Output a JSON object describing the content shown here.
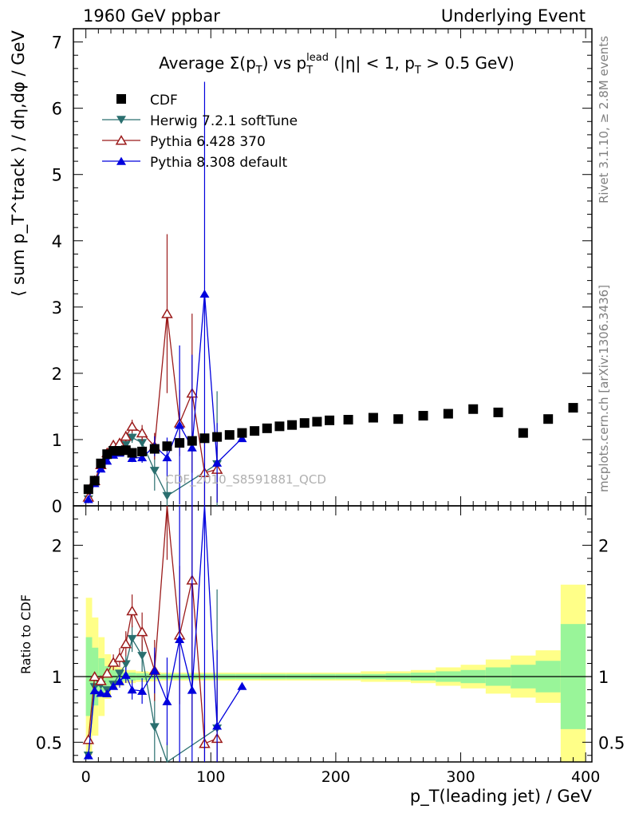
{
  "header": {
    "left": "1960 GeV ppbar",
    "right": "Underlying Event",
    "side_rivet": "Rivet 3.1.10, ≥ 2.8M events",
    "side_mcplots": "mcplots.cern.ch [arXiv:1306.3436]"
  },
  "chart_data": {
    "type": "scatter",
    "title_parts": [
      "Average Σ(p",
      "T",
      ") vs p",
      "T",
      "lead",
      " (|η| < 1, p",
      "T",
      " > 0.5 GeV)"
    ],
    "ylabel_main": "⟨ sum p_T^track ⟩ / dη,dφ / GeV",
    "ylabel_ratio": "Ratio to CDF",
    "xlabel": "p_T(leading jet) / GeV",
    "watermark": "CDF_2010_S8591881_QCD",
    "xlim": [
      -10,
      405
    ],
    "ylim_main": [
      0,
      7.2
    ],
    "ylim_ratio": [
      0.35,
      2.3
    ],
    "x_ticks": [
      0,
      100,
      200,
      300,
      400
    ],
    "y_ticks_main": [
      0,
      1,
      2,
      3,
      4,
      5,
      6,
      7
    ],
    "y_ticks_ratio": [
      0.5,
      1,
      2
    ],
    "legend": [
      {
        "label": "CDF",
        "marker": "square",
        "color": "#000000"
      },
      {
        "label": "Herwig 7.2.1 softTune",
        "marker": "triangle-down",
        "color": "#2a6f6f"
      },
      {
        "label": "Pythia 6.428 370",
        "marker": "triangle-open",
        "color": "#9b1b1b"
      },
      {
        "label": "Pythia 8.308 default",
        "marker": "triangle",
        "color": "#0000dd"
      }
    ],
    "data": {
      "x": [
        2,
        7,
        12,
        17,
        22,
        27,
        32,
        37,
        45,
        55,
        65,
        75,
        85,
        95,
        105,
        115,
        125,
        135,
        145,
        155,
        165,
        175,
        185,
        195,
        210,
        230,
        250,
        270,
        290,
        310,
        330,
        350,
        370,
        390
      ],
      "y": [
        0.25,
        0.38,
        0.64,
        0.78,
        0.83,
        0.83,
        0.84,
        0.8,
        0.82,
        0.86,
        0.9,
        0.95,
        0.98,
        1.02,
        1.04,
        1.07,
        1.1,
        1.13,
        1.17,
        1.2,
        1.22,
        1.25,
        1.27,
        1.29,
        1.3,
        1.33,
        1.31,
        1.36,
        1.39,
        1.46,
        1.41,
        1.1,
        1.31,
        1.48
      ]
    },
    "band": {
      "edges": [
        0,
        5,
        10,
        15,
        20,
        25,
        30,
        40,
        50,
        60,
        70,
        80,
        90,
        100,
        120,
        140,
        160,
        180,
        200,
        220,
        240,
        260,
        280,
        300,
        320,
        340,
        360,
        380,
        400
      ],
      "stat": [
        0.3,
        0.22,
        0.14,
        0.08,
        0.05,
        0.04,
        0.03,
        0.025,
        0.02,
        0.02,
        0.02,
        0.02,
        0.02,
        0.02,
        0.02,
        0.02,
        0.02,
        0.02,
        0.02,
        0.02,
        0.025,
        0.03,
        0.04,
        0.05,
        0.07,
        0.09,
        0.12,
        0.4
      ],
      "total": [
        0.6,
        0.45,
        0.3,
        0.17,
        0.1,
        0.07,
        0.05,
        0.04,
        0.035,
        0.03,
        0.03,
        0.03,
        0.03,
        0.03,
        0.03,
        0.03,
        0.03,
        0.03,
        0.03,
        0.04,
        0.04,
        0.05,
        0.07,
        0.09,
        0.13,
        0.16,
        0.2,
        0.7
      ]
    },
    "series": [
      {
        "name": "Herwig 7.2.1 softTune",
        "color": "#2a6f6f",
        "marker": "triangle-down",
        "x": [
          2,
          7,
          12,
          17,
          22,
          27,
          32,
          37,
          45,
          55,
          65,
          105
        ],
        "y": [
          0.1,
          0.35,
          0.6,
          0.7,
          0.78,
          0.85,
          0.92,
          1.03,
          0.95,
          0.53,
          0.15,
          0.63
        ],
        "err": [
          0,
          0,
          0,
          0,
          0,
          0,
          0.05,
          0.08,
          0.1,
          0.3,
          0.3,
          1.1
        ]
      },
      {
        "name": "Pythia 6.428 370",
        "color": "#9b1b1b",
        "marker": "triangle-open",
        "x": [
          2,
          7,
          12,
          17,
          22,
          27,
          32,
          37,
          45,
          55,
          65,
          75,
          85,
          95,
          105
        ],
        "y": [
          0.13,
          0.38,
          0.62,
          0.8,
          0.92,
          0.95,
          1.05,
          1.2,
          1.1,
          0.9,
          2.9,
          1.25,
          1.7,
          0.5,
          0.55
        ],
        "err": [
          0,
          0,
          0,
          0,
          0.05,
          0.06,
          0.08,
          0.1,
          0.12,
          0.2,
          1.2,
          0.5,
          1.2,
          0.5,
          0.5
        ]
      },
      {
        "name": "Pythia 8.308 default",
        "color": "#0000dd",
        "marker": "triangle",
        "x": [
          2,
          7,
          12,
          17,
          22,
          27,
          32,
          37,
          45,
          55,
          65,
          75,
          85,
          95,
          105,
          125
        ],
        "y": [
          0.1,
          0.34,
          0.56,
          0.68,
          0.77,
          0.8,
          0.85,
          0.72,
          0.73,
          0.9,
          0.73,
          1.22,
          0.88,
          3.2,
          0.65,
          1.02
        ],
        "err": [
          0,
          0,
          0,
          0,
          0,
          0.04,
          0.05,
          0.06,
          0.08,
          0.15,
          0.3,
          1.2,
          1.4,
          3.2,
          0.6,
          0
        ]
      }
    ]
  }
}
